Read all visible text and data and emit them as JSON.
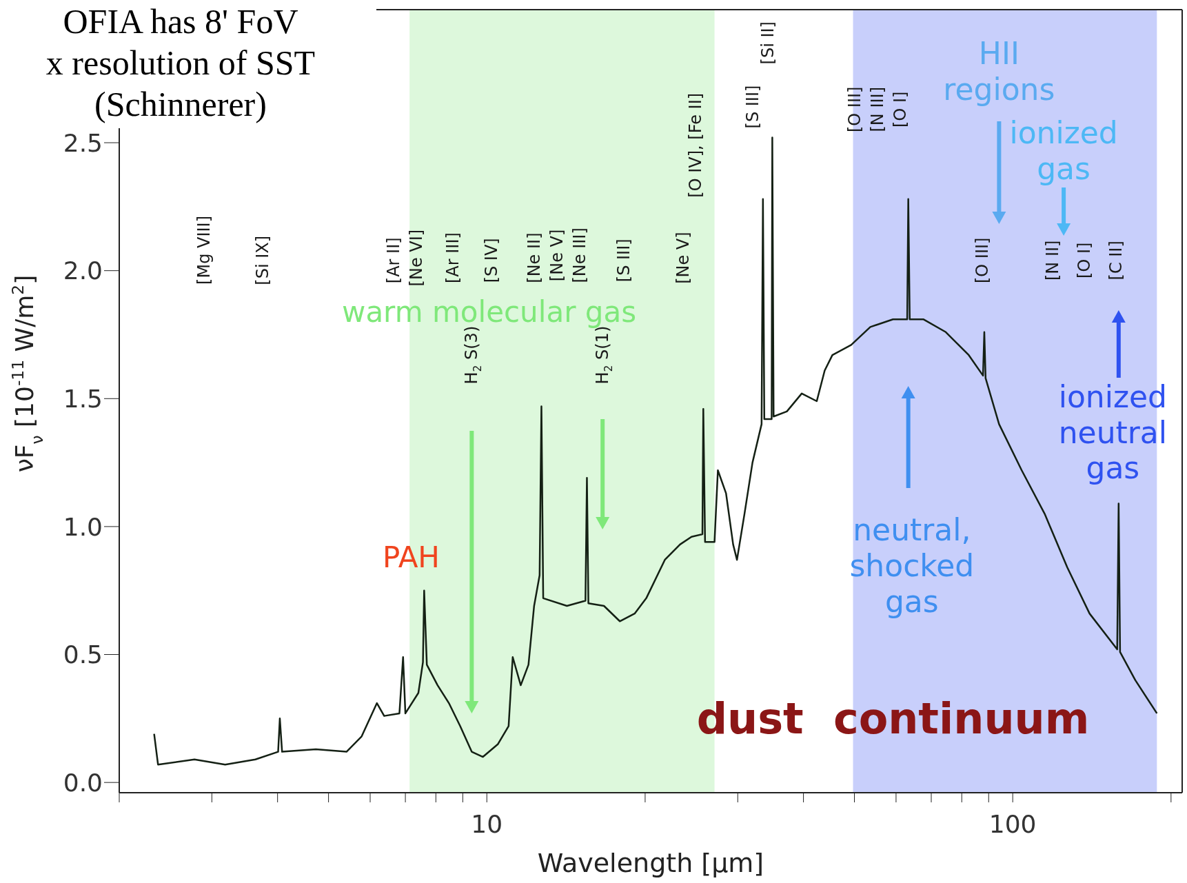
{
  "chart_data": {
    "type": "line",
    "xlabel": "Wavelength [μm]",
    "ylabel": "νF$_{ν}$ [10$^{-11}$ W/m$^{2}$]",
    "log": "x",
    "xlim": [
      2,
      210
    ],
    "ylim": [
      -0.04,
      3.02
    ],
    "xticks": [
      {
        "value": 2,
        "label": null
      },
      {
        "value": 3,
        "label": null
      },
      {
        "value": 4,
        "label": null
      },
      {
        "value": 5,
        "label": null
      },
      {
        "value": 6,
        "label": null
      },
      {
        "value": 7,
        "label": null
      },
      {
        "value": 8,
        "label": null
      },
      {
        "value": 9,
        "label": null
      },
      10,
      {
        "value": 20,
        "label": null
      },
      {
        "value": 30,
        "label": null
      },
      {
        "value": 40,
        "label": null
      },
      {
        "value": 50,
        "label": null
      },
      {
        "value": 60,
        "label": null
      },
      {
        "value": 70,
        "label": null
      },
      {
        "value": 80,
        "label": null
      },
      {
        "value": 90,
        "label": null
      },
      100,
      {
        "value": 200,
        "label": null
      }
    ],
    "yticks": [
      {
        "value": 0,
        "label": "0.0"
      },
      {
        "value": 0.5,
        "label": "0.5"
      },
      {
        "value": 1,
        "label": "1.0"
      },
      {
        "value": 1.5,
        "label": "1.5"
      },
      {
        "value": 2,
        "label": "2.0"
      },
      {
        "value": 2.5,
        "label": "2.5"
      }
    ],
    "grid": false,
    "marker": "none",
    "line_style": "solid",
    "bands": [
      {
        "axis": "x",
        "from": 7.13,
        "to": 27.1,
        "color": "#ddf8dc"
      },
      {
        "axis": "x",
        "from": 49.7,
        "to": 188,
        "color": "#c8cffb"
      }
    ],
    "series": [
      {
        "color": "#142014",
        "x": [
          2.33,
          2.37,
          2.78,
          3.18,
          3.63,
          4.01,
          4.04,
          4.08,
          4.73,
          5.41,
          5.78,
          6.18,
          6.38,
          6.82,
          6.93,
          7.0,
          7.41,
          7.56,
          7.6,
          7.69,
          8.06,
          8.47,
          8.9,
          9.36,
          9.83,
          10.5,
          11.0,
          11.2,
          11.6,
          12.0,
          12.3,
          12.6,
          12.7,
          12.8,
          14.2,
          15.4,
          15.5,
          15.6,
          16.7,
          17.9,
          19.1,
          20.1,
          21.8,
          23.3,
          24.5,
          25.7,
          25.8,
          26.0,
          27.1,
          27.5,
          28.5,
          29.4,
          29.9,
          30.9,
          32.0,
          33.3,
          33.5,
          33.7,
          34.8,
          34.9,
          35.1,
          37.2,
          39.7,
          42.4,
          43.9,
          45.4,
          49.3,
          53.6,
          59.2,
          63.0,
          63.3,
          63.7,
          67.6,
          74.6,
          82.5,
          87.8,
          88.3,
          88.8,
          94.2,
          104,
          115,
          127,
          140,
          158,
          159,
          160,
          171,
          188
        ],
        "values": [
          0.19,
          0.07,
          0.09,
          0.07,
          0.09,
          0.12,
          0.25,
          0.12,
          0.13,
          0.12,
          0.18,
          0.31,
          0.26,
          0.27,
          0.49,
          0.27,
          0.35,
          0.47,
          0.75,
          0.46,
          0.38,
          0.31,
          0.22,
          0.12,
          0.1,
          0.15,
          0.22,
          0.49,
          0.38,
          0.46,
          0.69,
          0.81,
          1.47,
          0.72,
          0.69,
          0.71,
          1.19,
          0.7,
          0.69,
          0.63,
          0.66,
          0.72,
          0.87,
          0.93,
          0.96,
          0.97,
          1.46,
          0.94,
          0.94,
          1.22,
          1.13,
          0.93,
          0.87,
          1.05,
          1.25,
          1.4,
          2.28,
          1.42,
          1.42,
          2.52,
          1.43,
          1.45,
          1.52,
          1.49,
          1.61,
          1.67,
          1.71,
          1.78,
          1.81,
          1.81,
          2.28,
          1.81,
          1.81,
          1.76,
          1.67,
          1.59,
          1.76,
          1.58,
          1.4,
          1.22,
          1.05,
          0.84,
          0.66,
          0.52,
          1.09,
          0.51,
          0.4,
          0.27
        ]
      }
    ],
    "annotations": [
      "OFIA has 8' FoV",
      "x resolution of SST",
      "(Schinnerer)",
      "[Mg VIII]",
      "[Si IX]",
      "[Ar II]",
      "[Ne VI]",
      "[Ar III]",
      "[S IV]",
      "[Ne II]",
      "[Ne V]",
      "[Ne III]",
      "[S III]",
      "[Ne V]",
      "[O IV], [Fe II]",
      "[S III]",
      "[Si II]",
      "[O III]",
      "[N III]",
      "[O I]",
      "[O III]",
      "[N II]",
      "[O I]",
      "[C II]",
      "H$_{2}$ S(3)",
      "H$_{2}$ S(1)",
      "warm molecular gas",
      "PAH",
      "HII regions",
      "ionized gas",
      "ionized neutral gas",
      "neutral, shocked gas",
      "dust  continuum"
    ]
  }
}
